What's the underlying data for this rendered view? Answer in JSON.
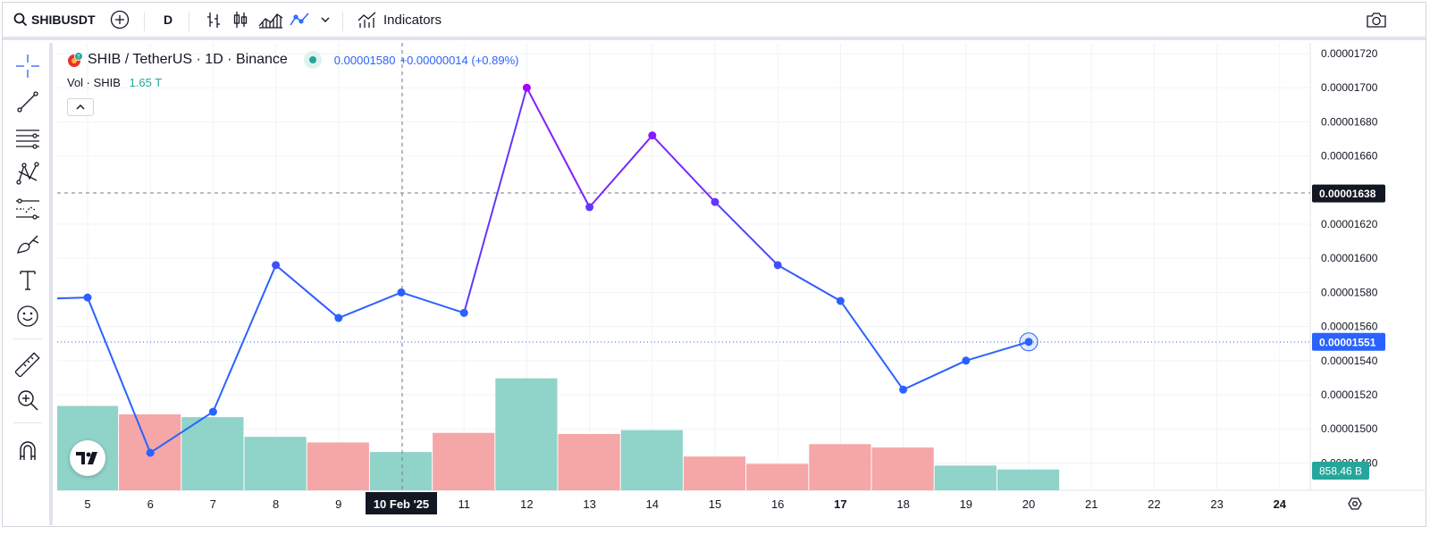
{
  "toolbar": {
    "symbol": "SHIBUSDT",
    "interval": "D",
    "indicators_label": "Indicators"
  },
  "legend": {
    "symbol_title": "SHIB / TetherUS · 1D · Binance",
    "price": "0.00001580",
    "change": "+0.00000014 (+0.89%)",
    "volume_label": "Vol · SHIB",
    "volume_value": "1.65 T"
  },
  "colors": {
    "line_blue": "#2962ff",
    "line_purple": "#aa00ff",
    "vol_up": "#8fd3c9",
    "vol_down": "#f5a6a6",
    "price_label_current": "#2962ff",
    "volume_label_bg": "#26a69a"
  },
  "chart_data": {
    "type": "line",
    "x_axis_labels": [
      "5",
      "6",
      "7",
      "8",
      "9",
      "10 Feb '25",
      "11",
      "12",
      "13",
      "14",
      "15",
      "16",
      "17",
      "18",
      "19",
      "20",
      "21",
      "22",
      "23",
      "24"
    ],
    "series": [
      {
        "x": [
          "5",
          "6",
          "7",
          "8",
          "9",
          "10 Feb '25",
          "11",
          "12",
          "13",
          "14",
          "15",
          "16",
          "17",
          "18",
          "19",
          "20"
        ],
        "values": [
          1.577e-05,
          1.486e-05,
          1.51e-05,
          1.596e-05,
          1.565e-05,
          1.58e-05,
          1.568e-05,
          1.7e-05,
          1.63e-05,
          1.672e-05,
          1.633e-05,
          1.596e-05,
          1.575e-05,
          1.523e-05,
          1.54e-05,
          1.551e-05
        ]
      }
    ],
    "volume": {
      "values": [
        1.5,
        1.35,
        1.3,
        0.95,
        0.85,
        0.68,
        1.02,
        1.99,
        1.0,
        1.07,
        0.6,
        0.47,
        0.82,
        0.76,
        0.44,
        0.37
      ],
      "direction": [
        "up",
        "down",
        "up",
        "up",
        "down",
        "up",
        "down",
        "up",
        "down",
        "up",
        "down",
        "down",
        "down",
        "down",
        "up",
        "up"
      ]
    },
    "y_axis_labels": [
      "0.00001720",
      "0.00001700",
      "0.00001680",
      "0.00001660",
      "0.00001620",
      "0.00001600",
      "0.00001580",
      "0.00001560",
      "0.00001540",
      "0.00001520",
      "0.00001500",
      "0.00001480"
    ],
    "ylim": [
      1.47e-05,
      1.726e-05
    ],
    "crosshair_price_label": "0.00001638",
    "current_price_label": "0.00001551",
    "volume_price_label": "858.46 B",
    "highlighted_x_label": "10 Feb '25",
    "grid": true
  }
}
